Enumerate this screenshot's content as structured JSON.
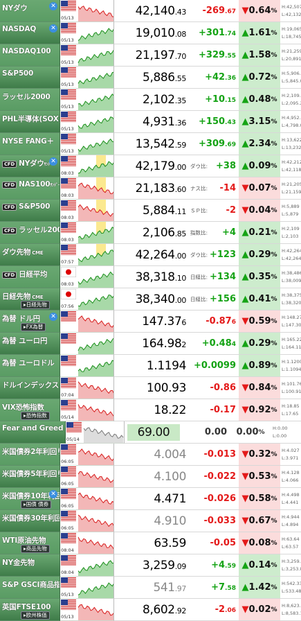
{
  "colors": {
    "name_bg": "#5a9c64",
    "name_bg2": "#3f7c49",
    "up": "#15a315",
    "down": "#e41a1a"
  },
  "rows": [
    {
      "id": "nydow",
      "name": "NYダウ",
      "x": true,
      "date": "05/13",
      "chart": "flag_none",
      "price_int": "42,140",
      "price_dec": ".43",
      "chg_int": "-269",
      "chg_dec": ".67",
      "pct": "0.64",
      "dir": "dn",
      "high": "H:42,507.22",
      "low": "L:42,132.07"
    },
    {
      "id": "nasdaq",
      "name": "NASDAQ",
      "x": true,
      "date": "05/13",
      "chart": "none",
      "price_int": "19,010",
      "price_dec": ".08",
      "chg_int": "+301",
      "chg_dec": ".74",
      "pct": "1.61",
      "dir": "up",
      "high": "H:19,065.86",
      "low": "L:18,745.05"
    },
    {
      "id": "nasdaq100",
      "name": "NASDAQ100",
      "date": "05/13",
      "price_int": "21,197",
      "price_dec": ".70",
      "chg_int": "+329",
      "chg_dec": ".55",
      "pct": "1.58",
      "dir": "up",
      "high": "H:21,259.39",
      "low": "L:20,891.15"
    },
    {
      "id": "sp500",
      "name": "S&P500",
      "date": "05/13",
      "price_int": "5,886",
      "price_dec": ".55",
      "chg_int": "+42",
      "chg_dec": ".36",
      "pct": "0.72",
      "dir": "up",
      "high": "H:5,906.63",
      "low": "L:5,845.02"
    },
    {
      "id": "russell",
      "name": "ラッセル2000",
      "date": "05/13",
      "price_int": "2,102",
      "price_dec": ".35",
      "chg_int": "+10",
      "chg_dec": ".15",
      "pct": "0.48",
      "dir": "up",
      "high": "H:2,109.09",
      "low": "L:2,095.24"
    },
    {
      "id": "sox",
      "name": "PHL半導体(SOX)",
      "date": "05/13",
      "price_int": "4,931",
      "price_dec": ".36",
      "chg_int": "+150",
      "chg_dec": ".43",
      "pct": "3.15",
      "dir": "up",
      "high": "H:4,952.90",
      "low": "L:4,798.04"
    },
    {
      "id": "fang",
      "name": "NYSE FANG＋",
      "date": "05/13",
      "price_int": "13,542",
      "price_dec": ".59",
      "chg_int": "+309",
      "chg_dec": ".69",
      "pct": "2.34",
      "dir": "up",
      "high": "H:13,622.12",
      "low": "L:13,232.90"
    },
    {
      "id": "cfd_dow",
      "cfd": true,
      "name": "NYダウ",
      "name_suffix": "ｻﾝﾃﾞｰ",
      "x": true,
      "date": "08:03",
      "price_int": "42,179",
      "price_dec": ".00",
      "basis": "ダウ比:",
      "chg_int": "+38",
      "chg_dec": "",
      "pct": "0.09",
      "dir": "up",
      "high": "H:42,212",
      "low": "L:42,118"
    },
    {
      "id": "cfd_nas",
      "cfd": true,
      "name": "NAS100",
      "name_suffix": "ｻﾝﾃﾞｰ",
      "date": "08:03",
      "price_int": "21,183",
      "price_dec": ".60",
      "basis": "ナス比:",
      "chg_int": "-14",
      "chg_dec": "",
      "pct": "0.07",
      "dir": "dn",
      "high": "H:21,205",
      "low": "L:21,159"
    },
    {
      "id": "cfd_sp",
      "cfd": true,
      "name": "S&P500",
      "date": "08:03",
      "price_int": "5,884",
      "price_dec": ".11",
      "basis": "ＳＰ比:",
      "chg_int": "-2",
      "chg_dec": "",
      "pct": "0.04",
      "dir": "dn",
      "high": "H:5,889",
      "low": "L:5,879"
    },
    {
      "id": "cfd_rus",
      "cfd": true,
      "name": "ラッセル2000",
      "date": "08:03",
      "price_int": "2,106",
      "price_dec": ".85",
      "basis": "指数比:",
      "chg_int": "+4",
      "chg_dec": "",
      "pct": "0.21",
      "dir": "up",
      "high": "H:2,109",
      "low": "L:2,103"
    },
    {
      "id": "dow_fut",
      "name": "ダウ先物",
      "name_small": "CME",
      "date": "07:57",
      "price_int": "42,264",
      "price_dec": ".00",
      "basis": "ダウ比:",
      "chg_int": "+123",
      "chg_dec": "",
      "pct": "0.29",
      "dir": "up",
      "high": "H:42,264",
      "low": "L:42,264"
    },
    {
      "id": "cfd_nk",
      "cfd": true,
      "name": "日経平均",
      "date": "08:03",
      "price_int": "38,318",
      "price_dec": ".10",
      "basis": "日経比:",
      "chg_int": "+134",
      "chg_dec": "",
      "pct": "0.35",
      "dir": "up",
      "high": "H:38,486",
      "low": "L:38,009"
    },
    {
      "id": "nk_fut",
      "name": "日経先物",
      "name_small": "CME",
      "sub": "日経先物",
      "date": "07:56",
      "price_int": "38,340",
      "price_dec": ".00",
      "basis": "日経比:",
      "chg_int": "+156",
      "chg_dec": "",
      "pct": "0.41",
      "dir": "up",
      "high": "H:38,375",
      "low": "L:38,320"
    },
    {
      "id": "usdjpy",
      "name": "為替 ドル円",
      "sub": "FX為替",
      "x": true,
      "date": "",
      "price_int": "147.37",
      "price_dec": "6",
      "chg_int": "-0.87",
      "chg_dec": "6",
      "pct": "0.59",
      "dir": "dn",
      "high": "H:148.274",
      "low": "L:147.302"
    },
    {
      "id": "eurjpy",
      "name": "為替 ユーロ円",
      "date": "",
      "price_int": "164.98",
      "price_dec": "2",
      "chg_int": "+0.48",
      "chg_dec": "4",
      "pct": "0.29",
      "dir": "up",
      "high": "H:165.222",
      "low": "L:164.112"
    },
    {
      "id": "eurusd",
      "name": "為替 ユーロドル",
      "date": "",
      "price_int": "1.1194",
      "price_dec": "",
      "chg_int": "+0.0099",
      "chg_dec": "",
      "pct": "0.89",
      "dir": "up",
      "high": "H:1.1200",
      "low": "L:1.1094"
    },
    {
      "id": "dxy",
      "name": "ドルインデックス",
      "date": "07:04",
      "price_int": "100.93",
      "price_dec": "",
      "chg_int": "-0.86",
      "chg_dec": "",
      "pct": "0.84",
      "dir": "dn",
      "high": "H:101.76",
      "low": "L:100.91"
    },
    {
      "id": "vix",
      "name": "VIX恐怖指数",
      "sub": "恐怖指数",
      "date": "05/14",
      "price_int": "18.22",
      "price_dec": "",
      "chg_int": "-0.17",
      "chg_dec": "",
      "pct": "0.92",
      "dir": "dn",
      "pct_small": true,
      "high": "H:18.85",
      "low": "L:17.65"
    },
    {
      "id": "fgi",
      "name": "Fear and Greed Index",
      "date": "05/14",
      "price_int": "69.00",
      "price_dec": "",
      "chg_int": "0.00",
      "chg_dec": "",
      "pct": "0.00",
      "dir": "fl",
      "fg": true,
      "high": "H:0.00",
      "low": "L:0.00"
    },
    {
      "id": "us2y",
      "name": "米国債券2年利回り",
      "date": "06:05",
      "price_int": "4.004",
      "price_dec": "",
      "chg_int": "-0.013",
      "chg_dec": "",
      "pct": "0.32",
      "dir": "dn",
      "gray": true,
      "high": "H:4.027",
      "low": "L:3.971"
    },
    {
      "id": "us5y",
      "name": "米国債券5年利回り",
      "date": "06:05",
      "price_int": "4.100",
      "price_dec": "",
      "chg_int": "-0.022",
      "chg_dec": "",
      "pct": "0.53",
      "dir": "dn",
      "gray": true,
      "high": "H:4.128",
      "low": "L:4.066"
    },
    {
      "id": "us10y",
      "name": "米国債券10年利回",
      "sub": "国債 債券",
      "x": true,
      "date": "06:05",
      "price_int": "4.471",
      "price_dec": "",
      "chg_int": "-0.026",
      "chg_dec": "",
      "pct": "0.58",
      "dir": "dn",
      "high": "H:4.498",
      "low": "L:4.441"
    },
    {
      "id": "us30y",
      "name": "米国債券30年利回り",
      "date": "06:05",
      "price_int": "4.910",
      "price_dec": "",
      "chg_int": "-0.033",
      "chg_dec": "",
      "pct": "0.67",
      "dir": "dn",
      "gray": true,
      "high": "H:4.944",
      "low": "L:4.894"
    },
    {
      "id": "wti",
      "name": "WTI原油先物",
      "sub": "商品先物",
      "date": "08:04",
      "price_int": "63.59",
      "price_dec": "",
      "chg_int": "-0.05",
      "chg_dec": "",
      "pct": "0.08",
      "dir": "dn",
      "high": "H:63.64",
      "low": "L:63.57"
    },
    {
      "id": "gold",
      "name": "NY金先物",
      "date": "08:04",
      "price_int": "3,259",
      "price_dec": ".09",
      "chg_int": "+4",
      "chg_dec": ".59",
      "pct": "0.14",
      "dir": "up",
      "high": "H:3,259.22",
      "low": "L:3,253.83"
    },
    {
      "id": "gsci",
      "name": "S&P GSCI商品指数",
      "date": "05/13",
      "price_int": "541",
      "price_dec": ".97",
      "chg_int": "+7",
      "chg_dec": ".58",
      "pct": "1.42",
      "dir": "up",
      "gray": true,
      "high": "H:542.33",
      "low": "L:533.48"
    },
    {
      "id": "ftse",
      "name": "英国FTSE100",
      "sub": "欧州株価",
      "date": "05/13",
      "price_int": "8,602",
      "price_dec": ".92",
      "chg_int": "-2",
      "chg_dec": ".06",
      "pct": "0.02",
      "dir": "dn",
      "high": "H:8,623.93",
      "low": "L:8,583.12"
    }
  ]
}
